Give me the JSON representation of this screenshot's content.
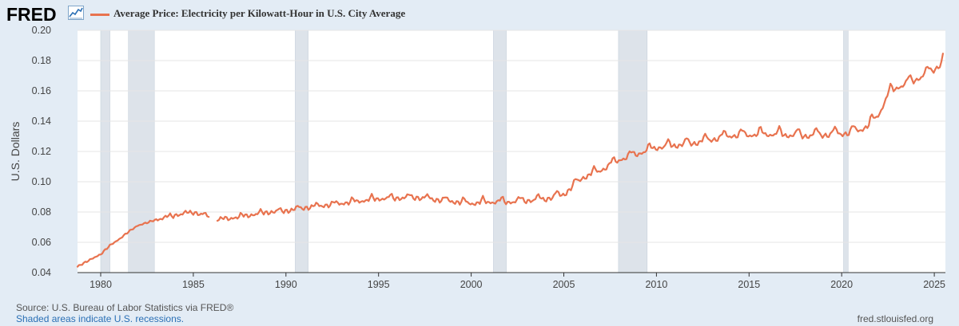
{
  "header": {
    "logo_text": "FRED",
    "legend_label": "Average Price: Electricity per Kilowatt-Hour in U.S. City Average",
    "legend_color": "#e8734f"
  },
  "footer": {
    "source": "Source: U.S. Bureau of Labor Statistics via FRED®",
    "shaded_note": "Shaded areas indicate U.S. recessions.",
    "site": "fred.stlouisfed.org"
  },
  "colors": {
    "background": "#e3ecf5",
    "plot_bg": "#ffffff",
    "grid": "#e6e6e6",
    "recession": "#dde3ea",
    "line": "#e8734f"
  },
  "chart_data": {
    "type": "line",
    "title": "Average Price: Electricity per Kilowatt-Hour in U.S. City Average",
    "xlabel": "",
    "ylabel": "U.S. Dollars",
    "xlim": [
      1978.75,
      2025.6
    ],
    "ylim": [
      0.04,
      0.2
    ],
    "yticks": [
      0.04,
      0.06,
      0.08,
      0.1,
      0.12,
      0.14,
      0.16,
      0.18,
      0.2
    ],
    "ytick_labels": [
      "0.04",
      "0.06",
      "0.08",
      "0.10",
      "0.12",
      "0.14",
      "0.16",
      "0.18",
      "0.20"
    ],
    "xticks": [
      1980,
      1985,
      1990,
      1995,
      2000,
      2005,
      2010,
      2015,
      2020,
      2025
    ],
    "xtick_labels": [
      "1980",
      "1985",
      "1990",
      "1995",
      "2000",
      "2005",
      "2010",
      "2015",
      "2020",
      "2025"
    ],
    "recessions": [
      [
        1980.0,
        1980.5
      ],
      [
        1981.5,
        1982.9
      ],
      [
        1990.5,
        1991.2
      ],
      [
        2001.2,
        2001.9
      ],
      [
        2007.95,
        2009.5
      ],
      [
        2020.1,
        2020.35
      ]
    ],
    "gap": [
      1985.9,
      1986.3
    ],
    "base_curve": {
      "x": [
        1978.75,
        1979.5,
        1980.0,
        1980.5,
        1981.0,
        1981.5,
        1982.0,
        1983.0,
        1984.0,
        1985.0,
        1986.5,
        1988.0,
        1989.0,
        1990.0,
        1991.0,
        1993.0,
        1995.0,
        1997.0,
        1998.5,
        2000.0,
        2001.0,
        2002.0,
        2003.0,
        2004.0,
        2005.0,
        2006.0,
        2007.0,
        2008.0,
        2009.0,
        2010.0,
        2012.0,
        2014.0,
        2016.0,
        2018.0,
        2019.5,
        2020.5,
        2021.0,
        2021.5,
        2022.0,
        2022.5,
        2023.0,
        2024.0,
        2025.0,
        2025.35,
        2025.5
      ],
      "y": [
        0.044,
        0.049,
        0.052,
        0.058,
        0.062,
        0.067,
        0.071,
        0.075,
        0.078,
        0.08,
        0.075,
        0.078,
        0.08,
        0.081,
        0.083,
        0.086,
        0.089,
        0.09,
        0.088,
        0.086,
        0.087,
        0.087,
        0.088,
        0.089,
        0.092,
        0.103,
        0.108,
        0.115,
        0.119,
        0.123,
        0.126,
        0.131,
        0.132,
        0.131,
        0.132,
        0.133,
        0.135,
        0.138,
        0.145,
        0.158,
        0.163,
        0.168,
        0.175,
        0.178,
        0.186
      ]
    },
    "seasonal": {
      "start_year": 1983.0,
      "amp_start": 0.0015,
      "amp_end": 0.0055,
      "amp_end_year": 2019.0,
      "peak_month": 7.5
    },
    "sample_step_months": 1
  }
}
